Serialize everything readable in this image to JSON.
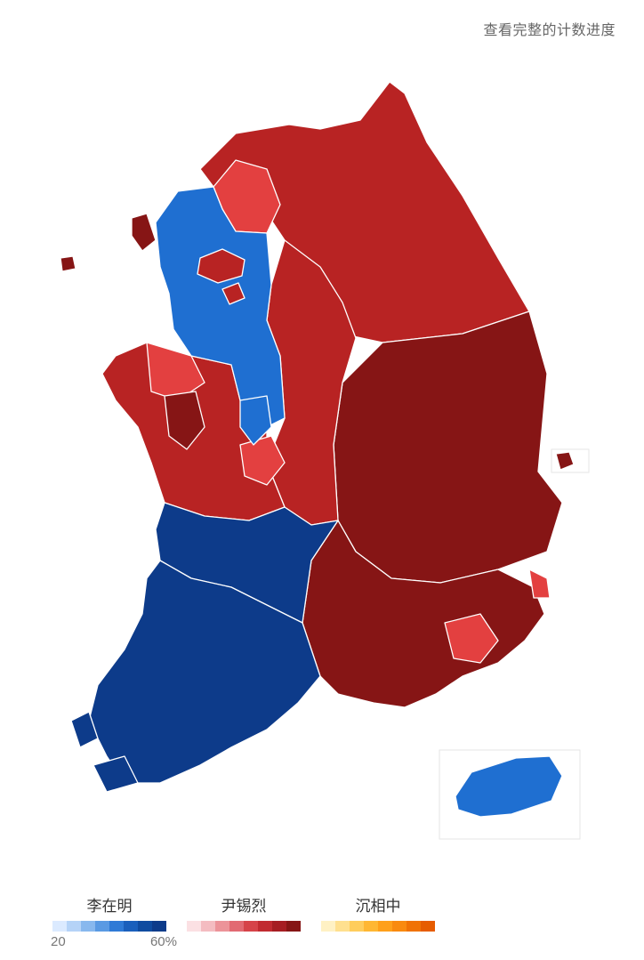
{
  "header": {
    "progress_link": "查看完整的计数进度"
  },
  "colors": {
    "lee_deep": "#0d3b8a",
    "lee_mid": "#1f6fd1",
    "yoon_deep": "#861515",
    "yoon_mid": "#b82323",
    "yoon_light": "#e34040"
  },
  "legend": [
    {
      "candidate": "李在明",
      "scale": [
        "#dbeaff",
        "#b5d3f7",
        "#88b8ee",
        "#5a9ae3",
        "#2f7ad6",
        "#1a5fbc",
        "#0f4ba0",
        "#0d3b8a"
      ],
      "min_label": "20",
      "max_label": "60%"
    },
    {
      "candidate": "尹锡烈",
      "scale": [
        "#fbe0e3",
        "#f4bcc1",
        "#ec9399",
        "#e26a72",
        "#d64349",
        "#c12a30",
        "#a61d22",
        "#861515"
      ]
    },
    {
      "candidate": "沉相中",
      "scale": [
        "#fff1c4",
        "#ffe08f",
        "#ffcd5c",
        "#ffb733",
        "#ffa01a",
        "#f98a0f",
        "#f07205",
        "#e65c00"
      ]
    }
  ]
}
